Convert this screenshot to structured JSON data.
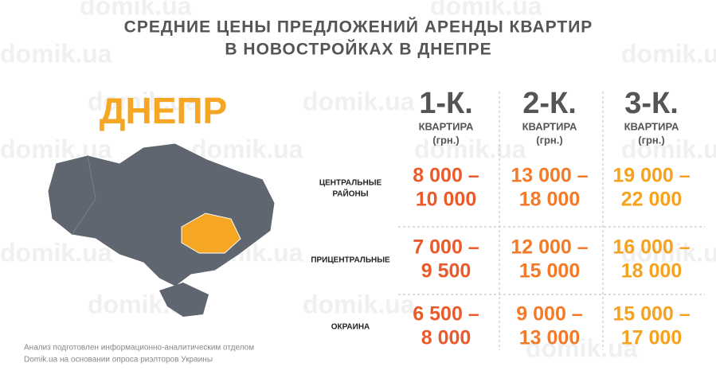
{
  "header": {
    "title": [
      "СРЕДНИЕ ЦЕНЫ ПРЕДЛОЖЕНИЙ АРЕНДЫ КВАРТИР",
      "В НОВОСТРОЙКАХ В ДНЕПРЕ"
    ]
  },
  "watermark": "domik.ua",
  "city": "ДНЕПР",
  "table": {
    "columns": [
      {
        "title": "1-К.",
        "subtitle": "КВАРТИРА",
        "unit": "(грн.)",
        "color": "#ea5a2a"
      },
      {
        "title": "2-К.",
        "subtitle": "КВАРТИРА",
        "unit": "(грн.)",
        "color": "#f27a28"
      },
      {
        "title": "3-К.",
        "subtitle": "КВАРТИРА",
        "unit": "(грн.)",
        "color": "#f6a21e"
      }
    ],
    "rows": [
      {
        "label": [
          "ЦЕНТРАЛЬНЫЕ",
          "РАЙОНЫ"
        ],
        "cells": [
          [
            "8 000 –",
            "10 000"
          ],
          [
            "13 000 –",
            "18 000"
          ],
          [
            "19 000 –",
            "22 000"
          ]
        ]
      },
      {
        "label": [
          "ПРИЦЕНТРАЛЬНЫЕ"
        ],
        "cells": [
          [
            "7 000 –",
            "9 500"
          ],
          [
            "12 000 –",
            "15 000"
          ],
          [
            "16 000 –",
            "18 000"
          ]
        ]
      },
      {
        "label": [
          "ОКРАИНА"
        ],
        "cells": [
          [
            "6 500 –",
            "8 000"
          ],
          [
            "9 000 –",
            "13 000"
          ],
          [
            "15 000 –",
            "17 000"
          ]
        ]
      }
    ]
  },
  "footer": [
    "Анализ подготовлен информационно-аналитическим отделом",
    "Domik.ua на основании опроса риэлторов Украины"
  ]
}
